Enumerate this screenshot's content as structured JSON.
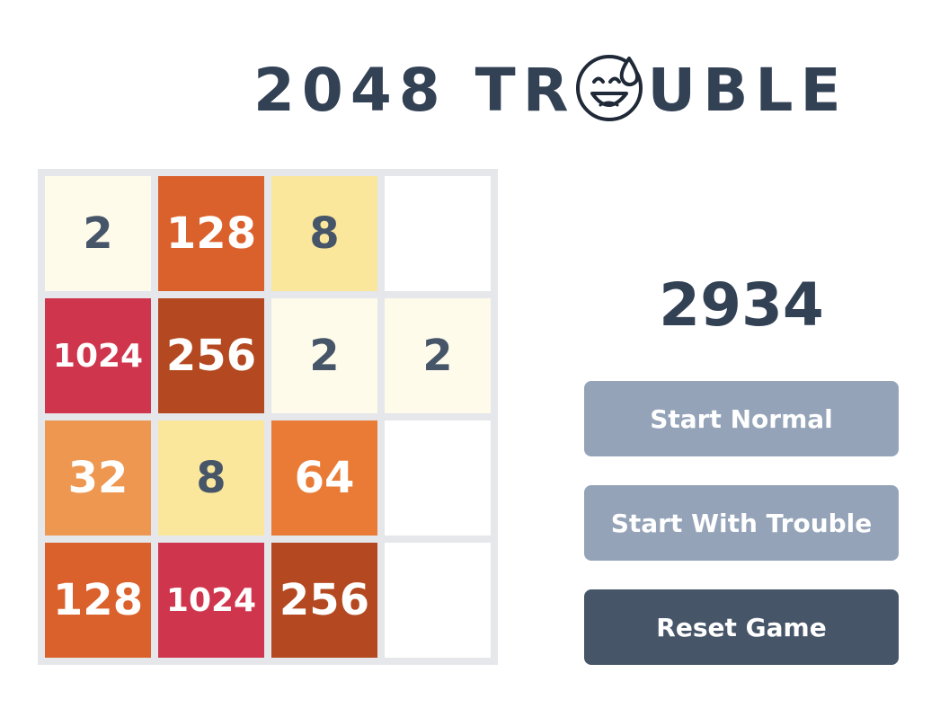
{
  "title": {
    "before": "2048 TR",
    "after": "UBLE",
    "logo_icon": "sweat-smile-emoji-icon"
  },
  "score": "2934",
  "board": {
    "rows": [
      [
        "2",
        "128",
        "8",
        ""
      ],
      [
        "1024",
        "256",
        "2",
        "2"
      ],
      [
        "32",
        "8",
        "64",
        ""
      ],
      [
        "128",
        "1024",
        "256",
        ""
      ]
    ],
    "empty_color": "#ffffff",
    "tile_styles": {
      "2": {
        "bg": "#fefbeb",
        "fg": "#475569"
      },
      "8": {
        "bg": "#fae79b",
        "fg": "#475569"
      },
      "32": {
        "bg": "#ee9751",
        "fg": "#ffffff"
      },
      "64": {
        "bg": "#e97b37",
        "fg": "#ffffff"
      },
      "128": {
        "bg": "#db612c",
        "fg": "#ffffff"
      },
      "256": {
        "bg": "#b44820",
        "fg": "#ffffff"
      },
      "1024": {
        "bg": "#cf364d",
        "fg": "#ffffff"
      }
    }
  },
  "buttons": {
    "start_normal": "Start Normal",
    "start_trouble": "Start With Trouble",
    "reset": "Reset Game"
  },
  "colors": {
    "title_text": "#334155",
    "board_background": "#e5e7eb",
    "button_light": "#94a3b8",
    "button_dark": "#475569"
  }
}
